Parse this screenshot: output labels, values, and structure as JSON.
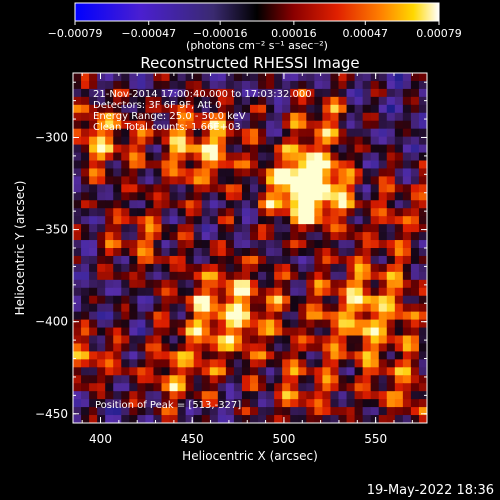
{
  "chart_data": {
    "type": "heatmap",
    "title": "Reconstructed RHESSI Image",
    "xlabel": "Heliocentric X (arcsec)",
    "ylabel": "Heliocentric Y (arcsec)",
    "xlim": [
      385,
      578
    ],
    "ylim": [
      -455,
      -265
    ],
    "x_ticks": [
      400,
      450,
      500,
      550
    ],
    "y_ticks": [
      -300,
      -350,
      -400,
      -450
    ],
    "x_tick_labels": [
      "400",
      "450",
      "500",
      "550"
    ],
    "y_tick_labels": [
      "−300",
      "−350",
      "−400",
      "−450"
    ],
    "colorbar": {
      "ticks": [
        -0.00079,
        -0.00047,
        -0.00016,
        0.00016,
        0.00047,
        0.00079
      ],
      "tick_labels": [
        "−0.00079",
        "−0.00047",
        "−0.00016",
        "0.00016",
        "0.00047",
        "0.00079"
      ],
      "unit_label": "(photons cm⁻² s⁻¹ asec⁻²)",
      "range": [
        -0.00079,
        0.00079
      ]
    },
    "annotations": [
      "21-Nov-2014 17:00:40.000 to 17:03:32.000",
      "Detectors: 3F 6F 9F, Att 0",
      "Energy Range: 25.0 - 50.0 keV",
      "Clean    Total counts: 1.66E+03"
    ],
    "peak_label": "Position of Peak = [513,-327]",
    "peak": [
      513,
      -327
    ],
    "grid": false
  },
  "footer": {
    "date": "19-May-2022 18:36"
  }
}
